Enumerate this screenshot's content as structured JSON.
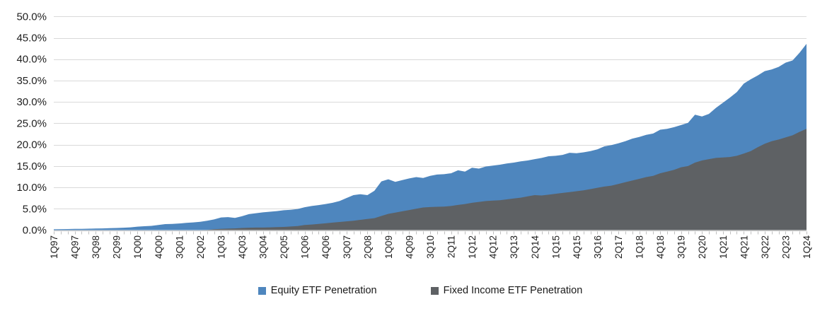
{
  "chart_data": {
    "type": "area",
    "title": "",
    "x_range": "1Q97 to 1Q24, quarterly",
    "n_points": 109,
    "x_label_interval": 3,
    "x_labels": [
      "1Q97",
      "4Q97",
      "3Q98",
      "2Q99",
      "1Q00",
      "4Q00",
      "3Q01",
      "2Q02",
      "1Q03",
      "4Q03",
      "3Q04",
      "2Q05",
      "1Q06",
      "4Q06",
      "3Q07",
      "2Q08",
      "1Q09",
      "4Q09",
      "3Q10",
      "2Q11",
      "1Q12",
      "4Q12",
      "3Q13",
      "2Q14",
      "1Q15",
      "4Q15",
      "3Q16",
      "2Q17",
      "1Q18",
      "4Q18",
      "3Q19",
      "2Q20",
      "1Q21",
      "4Q21",
      "3Q22",
      "2Q23",
      "1Q24"
    ],
    "ylim": [
      0,
      50
    ],
    "y_tick_step": 5,
    "y_tick_labels": [
      "0.0%",
      "5.0%",
      "10.0%",
      "15.0%",
      "20.0%",
      "25.0%",
      "30.0%",
      "35.0%",
      "40.0%",
      "45.0%",
      "50.0%"
    ],
    "grid": "horizontal",
    "legend_position": "bottom-center",
    "colors": {
      "grid": "#d9d9d9",
      "axis": "#bfbfbf",
      "text": "#1f1f1f"
    },
    "series": [
      {
        "name": "Equity ETF Penetration",
        "color": "#4e86be",
        "unit": "percent",
        "values": [
          0.2,
          0.22,
          0.25,
          0.28,
          0.3,
          0.33,
          0.38,
          0.4,
          0.45,
          0.5,
          0.55,
          0.65,
          0.8,
          0.9,
          1.0,
          1.2,
          1.4,
          1.45,
          1.55,
          1.7,
          1.8,
          1.95,
          2.2,
          2.5,
          2.95,
          3.05,
          2.85,
          3.25,
          3.75,
          3.95,
          4.15,
          4.3,
          4.45,
          4.65,
          4.75,
          4.95,
          5.35,
          5.65,
          5.85,
          6.1,
          6.4,
          6.8,
          7.5,
          8.2,
          8.4,
          8.2,
          9.2,
          11.4,
          11.9,
          11.3,
          11.7,
          12.1,
          12.4,
          12.2,
          12.7,
          13.0,
          13.1,
          13.3,
          14.0,
          13.7,
          14.6,
          14.4,
          14.9,
          15.1,
          15.3,
          15.6,
          15.8,
          16.1,
          16.3,
          16.6,
          16.9,
          17.3,
          17.4,
          17.6,
          18.1,
          18.0,
          18.2,
          18.5,
          18.9,
          19.6,
          19.9,
          20.3,
          20.8,
          21.4,
          21.8,
          22.3,
          22.6,
          23.5,
          23.7,
          24.1,
          24.6,
          25.1,
          27.0,
          26.6,
          27.2,
          28.6,
          29.8,
          31.0,
          32.3,
          34.3,
          35.3,
          36.2,
          37.2,
          37.6,
          38.2,
          39.2,
          39.7,
          41.5,
          43.6
        ]
      },
      {
        "name": "Fixed Income ETF Penetration",
        "color": "#5e6164",
        "unit": "percent",
        "values": [
          0,
          0,
          0,
          0,
          0,
          0,
          0,
          0,
          0,
          0,
          0,
          0,
          0,
          0,
          0,
          0,
          0,
          0,
          0,
          0,
          0,
          0,
          0.05,
          0.2,
          0.3,
          0.35,
          0.4,
          0.5,
          0.55,
          0.6,
          0.6,
          0.65,
          0.7,
          0.75,
          0.85,
          0.95,
          1.2,
          1.3,
          1.45,
          1.6,
          1.75,
          1.9,
          2.05,
          2.2,
          2.4,
          2.6,
          2.8,
          3.3,
          3.8,
          4.1,
          4.4,
          4.7,
          5.0,
          5.3,
          5.4,
          5.45,
          5.5,
          5.65,
          5.9,
          6.1,
          6.4,
          6.6,
          6.8,
          6.9,
          7.0,
          7.2,
          7.4,
          7.6,
          7.9,
          8.2,
          8.1,
          8.3,
          8.5,
          8.7,
          8.9,
          9.1,
          9.3,
          9.6,
          9.9,
          10.2,
          10.4,
          10.8,
          11.2,
          11.6,
          12.0,
          12.4,
          12.7,
          13.3,
          13.7,
          14.1,
          14.7,
          15.0,
          15.8,
          16.3,
          16.6,
          16.9,
          17.0,
          17.1,
          17.4,
          17.9,
          18.5,
          19.4,
          20.2,
          20.8,
          21.2,
          21.7,
          22.2,
          23.0,
          23.7
        ]
      }
    ]
  },
  "legend": {
    "equity_label": "Equity ETF Penetration",
    "fixed_income_label": "Fixed Income ETF Penetration"
  }
}
